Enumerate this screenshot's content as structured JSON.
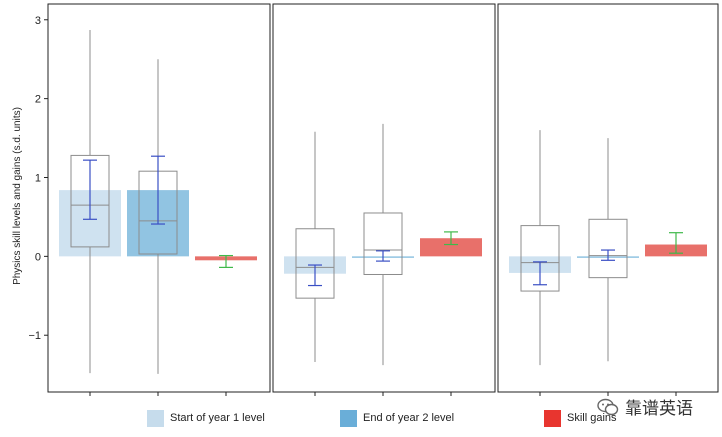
{
  "chart_data": {
    "type": "box",
    "ylabel": "Physics skill levels and gains (s.d. units)",
    "ylim": [
      -1.72,
      3.2
    ],
    "yticks": [
      -1,
      0,
      1,
      2,
      3
    ],
    "yticklabels": [
      "−1",
      "0",
      "1",
      "2",
      "3"
    ],
    "panels": [
      {
        "name": "panel-1",
        "items": [
          {
            "series": "start",
            "bar": 0.84,
            "box": [
              0.12,
              0.65,
              1.28
            ],
            "whisker": [
              -1.48,
              2.87
            ],
            "ci": [
              0.47,
              1.22
            ]
          },
          {
            "series": "end",
            "bar": 0.84,
            "box": [
              0.03,
              0.45,
              1.08
            ],
            "whisker": [
              -1.49,
              2.5
            ],
            "ci": [
              0.41,
              1.27
            ]
          },
          {
            "series": "gain",
            "bar": -0.05,
            "ci": [
              -0.14,
              0.01
            ]
          }
        ]
      },
      {
        "name": "panel-2",
        "items": [
          {
            "series": "start",
            "bar": -0.22,
            "box": [
              -0.53,
              -0.14,
              0.35
            ],
            "whisker": [
              -1.34,
              1.58
            ],
            "ci": [
              -0.37,
              -0.11
            ]
          },
          {
            "series": "end",
            "bar": 0.0,
            "box": [
              -0.23,
              0.08,
              0.55
            ],
            "whisker": [
              -1.38,
              1.68
            ],
            "ci": [
              -0.06,
              0.07
            ]
          },
          {
            "series": "gain",
            "bar": 0.23,
            "ci": [
              0.15,
              0.31
            ]
          }
        ]
      },
      {
        "name": "panel-3",
        "items": [
          {
            "series": "start",
            "bar": -0.21,
            "box": [
              -0.44,
              -0.08,
              0.39
            ],
            "whisker": [
              -1.38,
              1.6
            ],
            "ci": [
              -0.36,
              -0.07
            ]
          },
          {
            "series": "end",
            "bar": 0.0,
            "box": [
              -0.27,
              0.01,
              0.47
            ],
            "whisker": [
              -1.33,
              1.5
            ],
            "ci": [
              -0.05,
              0.08
            ]
          },
          {
            "series": "gain",
            "bar": 0.15,
            "ci": [
              0.04,
              0.3
            ]
          }
        ]
      }
    ],
    "legend": {
      "position": "bottom",
      "entries": [
        {
          "key": "start",
          "label": "Start of year 1 level"
        },
        {
          "key": "end",
          "label": "End of year 2 level"
        },
        {
          "key": "gain",
          "label": "Skill gains"
        }
      ]
    }
  },
  "colors": {
    "start": "#cfe2f0",
    "end": "#91c4e2",
    "gain": "#e8706a",
    "legend_start": "#c6dcec",
    "legend_end": "#6aaed8",
    "legend_gain": "#e8352f",
    "ci_blue": "#3a4fc4",
    "ci_green": "#3fb94a",
    "box_edge": "#8c8c8c",
    "whisker": "#8c8c8c"
  },
  "watermark": {
    "text": "靠谱英语"
  }
}
